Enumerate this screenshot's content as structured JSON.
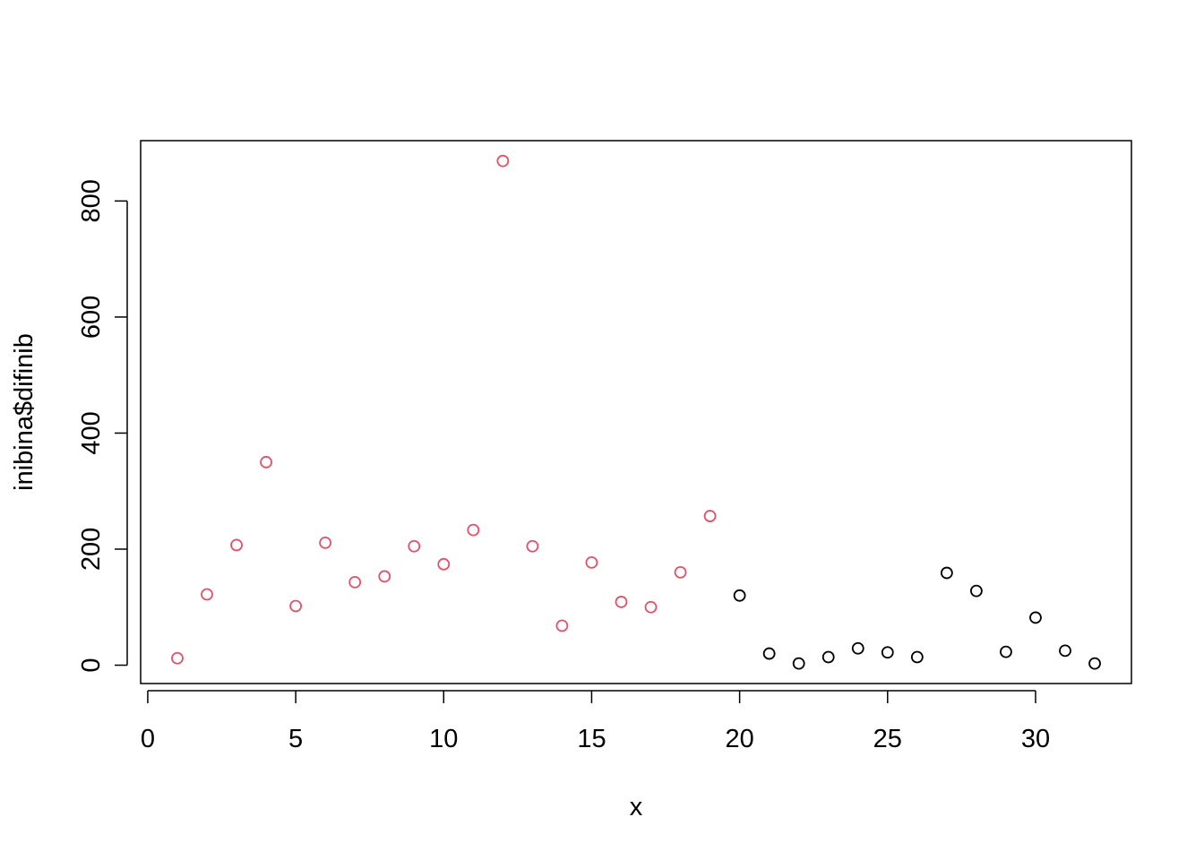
{
  "chart_data": {
    "type": "scatter",
    "title": "",
    "xlabel": "x",
    "ylabel": "inibina$difinib",
    "xlim": [
      -0.24,
      33.24
    ],
    "ylim": [
      -31.6,
      904
    ],
    "xticks": [
      "0",
      "5",
      "10",
      "15",
      "20",
      "25",
      "30"
    ],
    "yticks": [
      "0",
      "200",
      "400",
      "600",
      "800"
    ],
    "grid": false,
    "marker": "open-circle",
    "colors": {
      "group1": "#DF536B",
      "group2": "#000000"
    },
    "x": [
      1,
      2,
      3,
      4,
      5,
      6,
      7,
      8,
      9,
      10,
      11,
      12,
      13,
      14,
      15,
      16,
      17,
      18,
      19,
      20,
      21,
      22,
      23,
      24,
      25,
      26,
      27,
      28,
      29,
      30,
      31,
      32
    ],
    "y": [
      12,
      122,
      207,
      350,
      102,
      211,
      143,
      153,
      205,
      174,
      233,
      869,
      205,
      68,
      177,
      109,
      100,
      160,
      257,
      120,
      20,
      3,
      14,
      29,
      22,
      14,
      159,
      128,
      23,
      82,
      25,
      3
    ],
    "point_colors": [
      "#DF536B",
      "#DF536B",
      "#DF536B",
      "#DF536B",
      "#DF536B",
      "#DF536B",
      "#DF536B",
      "#DF536B",
      "#DF536B",
      "#DF536B",
      "#DF536B",
      "#DF536B",
      "#DF536B",
      "#DF536B",
      "#DF536B",
      "#DF536B",
      "#DF536B",
      "#DF536B",
      "#DF536B",
      "#000000",
      "#000000",
      "#000000",
      "#000000",
      "#000000",
      "#000000",
      "#000000",
      "#000000",
      "#000000",
      "#000000",
      "#000000",
      "#000000",
      "#000000"
    ]
  }
}
